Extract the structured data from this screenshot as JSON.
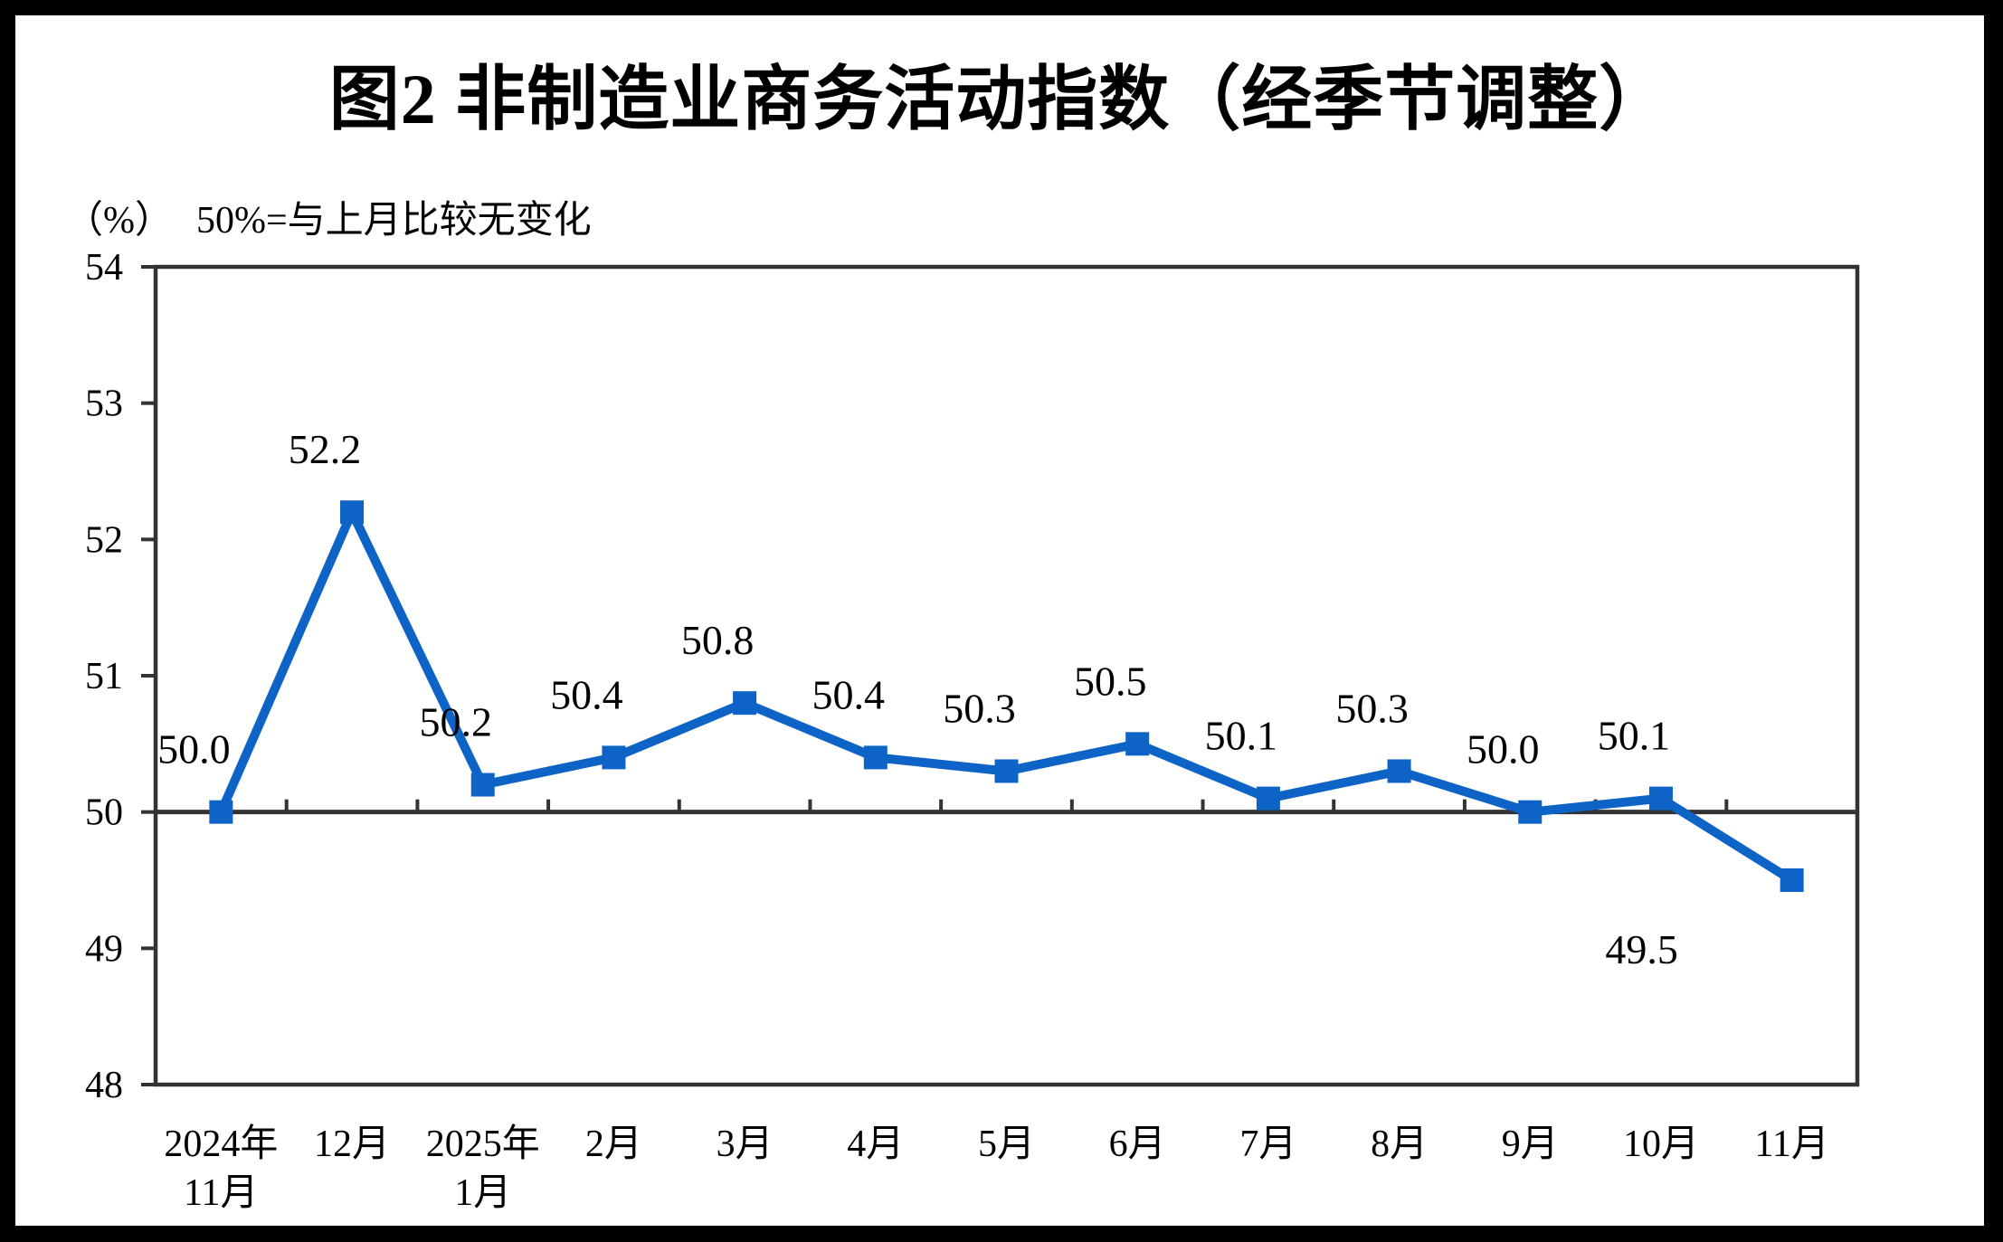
{
  "header": {
    "title": "图2 非制造业商务活动指数（经季节调整）",
    "unit": "（%）",
    "note": "50%=与上月比较无变化"
  },
  "chart_data": {
    "type": "line",
    "title": "图2 非制造业商务活动指数（经季节调整）",
    "subtitle": "（%） 50%=与上月比较无变化",
    "categories": [
      "2024年\n11月",
      "12月",
      "2025年\n1月",
      "2月",
      "3月",
      "4月",
      "5月",
      "6月",
      "7月",
      "8月",
      "9月",
      "10月",
      "11月"
    ],
    "series": [
      {
        "name": "非制造业商务活动指数",
        "values": [
          50.0,
          52.2,
          50.2,
          50.4,
          50.8,
          50.4,
          50.3,
          50.5,
          50.1,
          50.3,
          50.0,
          50.1,
          49.5
        ]
      }
    ],
    "data_labels": [
      "50.0",
      "52.2",
      "50.2",
      "50.4",
      "50.8",
      "50.4",
      "50.3",
      "50.5",
      "50.1",
      "50.3",
      "50.0",
      "50.1",
      "49.5"
    ],
    "ylim": [
      48,
      54
    ],
    "yticks": [
      48,
      49,
      50,
      51,
      52,
      53,
      54
    ],
    "reference_line": 50,
    "grid": false,
    "legend_position": "none",
    "colors": {
      "line": "#0E63C6",
      "marker": "#0E63C6",
      "axis": "#333333",
      "text": "#000000",
      "background": "#ffffff",
      "outer_border": "#000000"
    }
  }
}
